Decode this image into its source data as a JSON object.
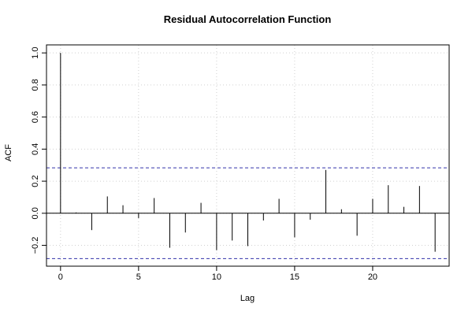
{
  "chart_data": {
    "type": "bar",
    "title": "Residual Autocorrelation Function",
    "xlabel": "Lag",
    "ylabel": "ACF",
    "xlim": [
      -0.9,
      24.9
    ],
    "ylim": [
      -0.33,
      1.05
    ],
    "x_ticks": [
      0,
      5,
      10,
      15,
      20
    ],
    "y_ticks": [
      -0.2,
      0.0,
      0.2,
      0.4,
      0.6,
      0.8,
      1.0
    ],
    "y_tick_labels": [
      "−0.2",
      "0.0",
      "0.2",
      "0.4",
      "0.6",
      "0.8",
      "1.0"
    ],
    "lags": [
      0,
      1,
      2,
      3,
      4,
      5,
      6,
      7,
      8,
      9,
      10,
      11,
      12,
      13,
      14,
      15,
      16,
      17,
      18,
      19,
      20,
      21,
      22,
      23,
      24
    ],
    "values": [
      1.0,
      0.005,
      -0.105,
      0.105,
      0.05,
      -0.03,
      0.095,
      -0.215,
      -0.12,
      0.065,
      -0.23,
      -0.17,
      -0.205,
      -0.045,
      0.09,
      -0.15,
      -0.04,
      0.27,
      0.025,
      -0.14,
      0.09,
      0.175,
      0.04,
      0.17,
      -0.24
    ],
    "confidence_bounds": [
      0.283,
      -0.283
    ],
    "zero_line": 0,
    "grid": true,
    "colors": {
      "bars": "#000000",
      "confidence": "#3333aa",
      "grid": "#d0d0d0",
      "axis": "#000000"
    }
  }
}
